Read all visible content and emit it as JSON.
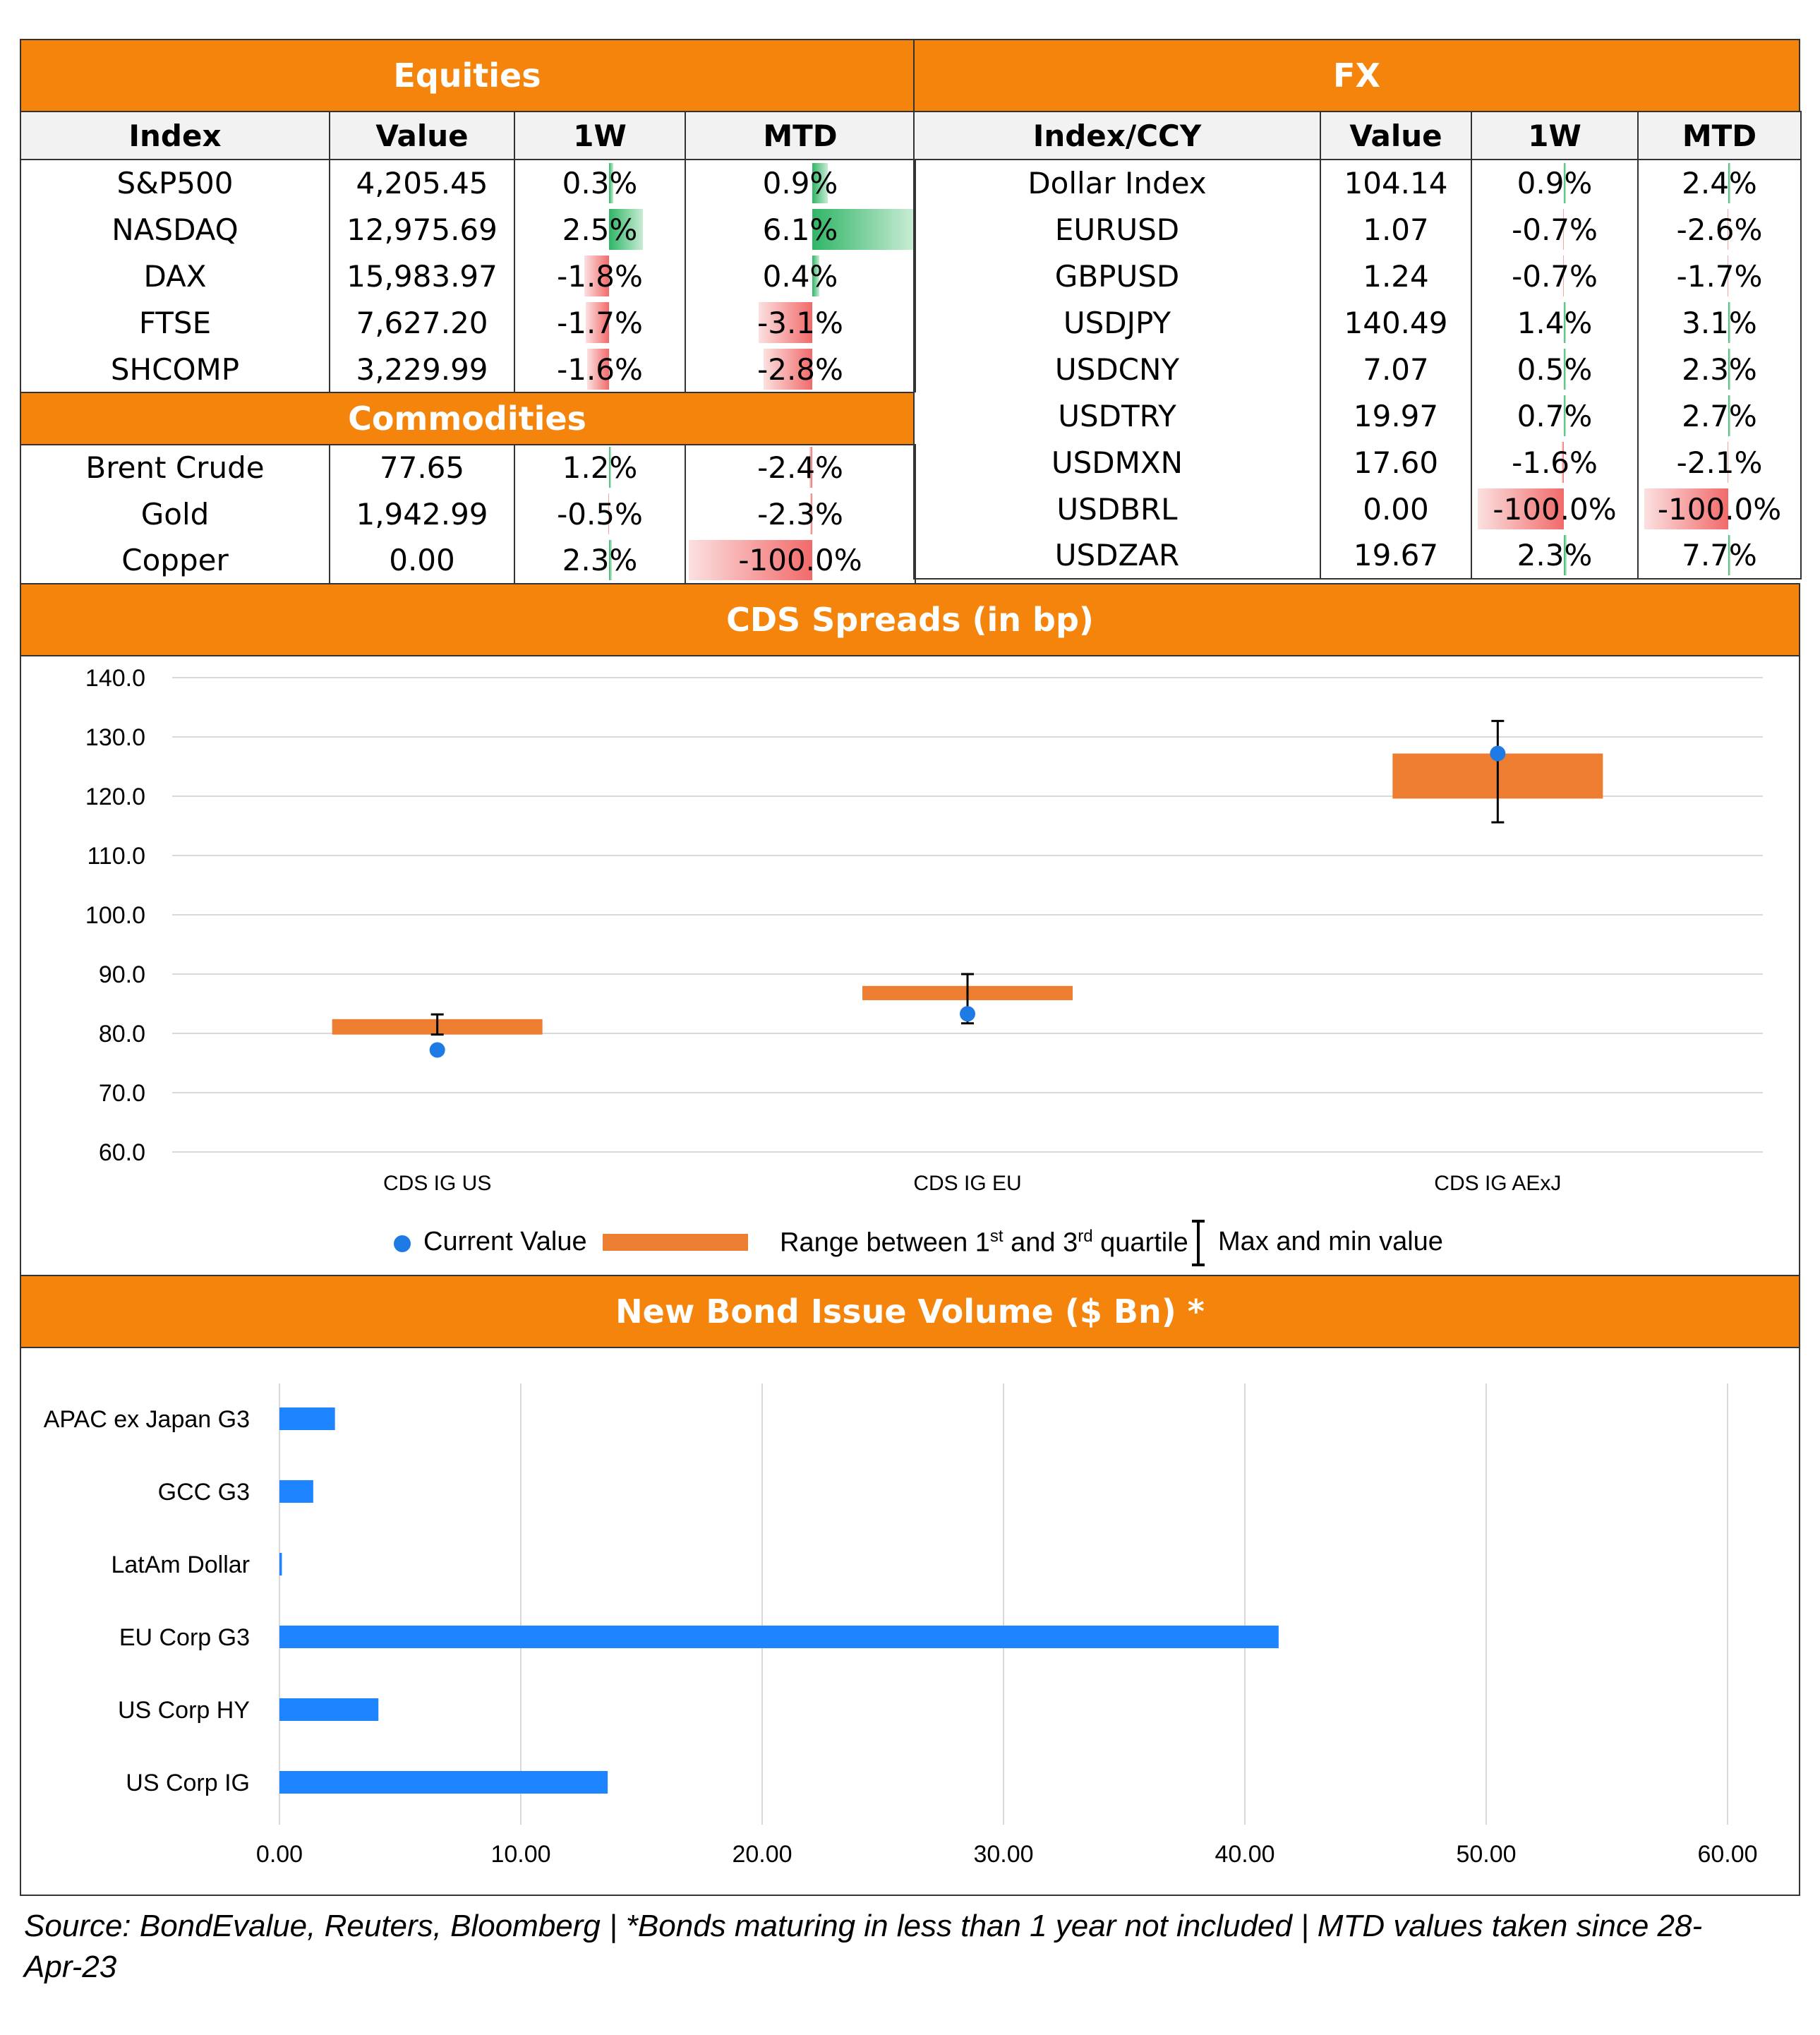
{
  "equities": {
    "title": "Equities",
    "headers": [
      "Index",
      "Value",
      "1W",
      "MTD"
    ],
    "rows": [
      {
        "name": "S&P500",
        "value": "4,205.45",
        "w1": "0.3%",
        "mtd": "0.9%",
        "w1_num": 0.3,
        "mtd_num": 0.9
      },
      {
        "name": "NASDAQ",
        "value": "12,975.69",
        "w1": "2.5%",
        "mtd": "6.1%",
        "w1_num": 2.5,
        "mtd_num": 6.1
      },
      {
        "name": "DAX",
        "value": "15,983.97",
        "w1": "-1.8%",
        "mtd": "0.4%",
        "w1_num": -1.8,
        "mtd_num": 0.4
      },
      {
        "name": "FTSE",
        "value": "7,627.20",
        "w1": "-1.7%",
        "mtd": "-3.1%",
        "w1_num": -1.7,
        "mtd_num": -3.1
      },
      {
        "name": "SHCOMP",
        "value": "3,229.99",
        "w1": "-1.6%",
        "mtd": "-2.8%",
        "w1_num": -1.6,
        "mtd_num": -2.8
      }
    ]
  },
  "commodities": {
    "title": "Commodities",
    "rows": [
      {
        "name": "Brent Crude",
        "value": "77.65",
        "w1": "1.2%",
        "mtd": "-2.4%",
        "w1_num": 1.2,
        "mtd_num": -2.4
      },
      {
        "name": "Gold",
        "value": "1,942.99",
        "w1": "-0.5%",
        "mtd": "-2.3%",
        "w1_num": -0.5,
        "mtd_num": -2.3
      },
      {
        "name": "Copper",
        "value": "0.00",
        "w1": "2.3%",
        "mtd": "-100.0%",
        "w1_num": 2.3,
        "mtd_num": -100.0
      }
    ]
  },
  "fx": {
    "title": "FX",
    "headers": [
      "Index/CCY",
      "Value",
      "1W",
      "MTD"
    ],
    "rows": [
      {
        "name": "Dollar Index",
        "value": "104.14",
        "w1": "0.9%",
        "mtd": "2.4%",
        "w1_num": 0.9,
        "mtd_num": 2.4
      },
      {
        "name": "EURUSD",
        "value": "1.07",
        "w1": "-0.7%",
        "mtd": "-2.6%",
        "w1_num": -0.7,
        "mtd_num": -2.6
      },
      {
        "name": "GBPUSD",
        "value": "1.24",
        "w1": "-0.7%",
        "mtd": "-1.7%",
        "w1_num": -0.7,
        "mtd_num": -1.7
      },
      {
        "name": "USDJPY",
        "value": "140.49",
        "w1": "1.4%",
        "mtd": "3.1%",
        "w1_num": 1.4,
        "mtd_num": 3.1
      },
      {
        "name": "USDCNY",
        "value": "7.07",
        "w1": "0.5%",
        "mtd": "2.3%",
        "w1_num": 0.5,
        "mtd_num": 2.3
      },
      {
        "name": "USDTRY",
        "value": "19.97",
        "w1": "0.7%",
        "mtd": "2.7%",
        "w1_num": 0.7,
        "mtd_num": 2.7
      },
      {
        "name": "USDMXN",
        "value": "17.60",
        "w1": "-1.6%",
        "mtd": "-2.1%",
        "w1_num": -1.6,
        "mtd_num": -2.1
      },
      {
        "name": "USDBRL",
        "value": "0.00",
        "w1": "-100.0%",
        "mtd": "-100.0%",
        "w1_num": -100.0,
        "mtd_num": -100.0
      },
      {
        "name": "USDZAR",
        "value": "19.67",
        "w1": "2.3%",
        "mtd": "7.7%",
        "w1_num": 2.3,
        "mtd_num": 7.7
      }
    ]
  },
  "colors": {
    "header_orange": "#F4840C",
    "box_orange": "#ED7D31",
    "point_blue": "#1E7BE6",
    "bar_blue": "#1F84FF",
    "pos_green": "#2FB566",
    "neg_red": "#F26A6A"
  },
  "cds_title": "CDS Spreads (in bp)",
  "bond_title": "New Bond Issue Volume ($ Bn) *",
  "legend": {
    "current": "Current Value",
    "range_pre": "Range between 1",
    "range_sup1": "st",
    "range_mid": " and 3",
    "range_sup2": "rd",
    "range_post": " quartile",
    "maxmin": "Max and min value"
  },
  "source": "Source: BondEvalue, Reuters, Bloomberg | *Bonds maturing in less than 1 year not included | MTD values taken since 28-Apr-23",
  "chart_data": [
    {
      "type": "box",
      "title": "CDS Spreads (in bp)",
      "categories": [
        "CDS IG US",
        "CDS IG EU",
        "CDS IG AExJ"
      ],
      "ylim": [
        60,
        140
      ],
      "yticks": [
        "60.0",
        "70.0",
        "80.0",
        "90.0",
        "100.0",
        "110.0",
        "120.0",
        "130.0",
        "140.0"
      ],
      "current": [
        77.2,
        83.3,
        127.2
      ],
      "q1": [
        79.8,
        85.6,
        119.6
      ],
      "q3": [
        82.4,
        88.0,
        127.2
      ],
      "min": [
        79.8,
        81.7,
        115.6
      ],
      "max": [
        83.2,
        90.0,
        132.7
      ],
      "grid": true,
      "legend": "bottom"
    },
    {
      "type": "bar",
      "orientation": "horizontal",
      "title": "New Bond Issue Volume ($ Bn) *",
      "categories": [
        "APAC ex Japan G3",
        "GCC G3",
        "LatAm Dollar",
        "EU Corp G3",
        "US Corp HY",
        "US Corp IG"
      ],
      "values": [
        2.3,
        1.4,
        0.1,
        41.4,
        4.1,
        13.6
      ],
      "xlim": [
        0,
        60
      ],
      "xticks": [
        "0.00",
        "10.00",
        "20.00",
        "30.00",
        "40.00",
        "50.00",
        "60.00"
      ],
      "grid": true
    }
  ]
}
